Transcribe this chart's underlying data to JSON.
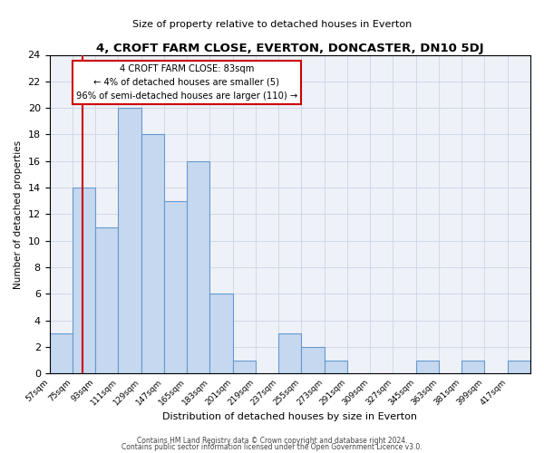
{
  "title": "4, CROFT FARM CLOSE, EVERTON, DONCASTER, DN10 5DJ",
  "subtitle": "Size of property relative to detached houses in Everton",
  "xlabel": "Distribution of detached houses by size in Everton",
  "ylabel": "Number of detached properties",
  "bin_edges": [
    57,
    75,
    93,
    111,
    129,
    147,
    165,
    183,
    201,
    219,
    237,
    255,
    273,
    291,
    309,
    327,
    345,
    363,
    381,
    399,
    417,
    435
  ],
  "bin_labels": [
    "57sqm",
    "75sqm",
    "93sqm",
    "111sqm",
    "129sqm",
    "147sqm",
    "165sqm",
    "183sqm",
    "201sqm",
    "219sqm",
    "237sqm",
    "255sqm",
    "273sqm",
    "291sqm",
    "309sqm",
    "327sqm",
    "345sqm",
    "363sqm",
    "381sqm",
    "399sqm",
    "417sqm"
  ],
  "counts": [
    3,
    14,
    11,
    20,
    18,
    13,
    16,
    6,
    1,
    0,
    3,
    2,
    1,
    0,
    0,
    0,
    1,
    0,
    1,
    0,
    1
  ],
  "bar_color": "#c5d8f0",
  "bar_edge_color": "#6699cc",
  "red_line_x": 83,
  "annotation_line1": "4 CROFT FARM CLOSE: 83sqm",
  "annotation_line2": "← 4% of detached houses are smaller (5)",
  "annotation_line3": "96% of semi-detached houses are larger (110) →",
  "annotation_box_color": "#ffffff",
  "annotation_box_edge_color": "#cc0000",
  "red_line_color": "#cc0000",
  "ylim": [
    0,
    24
  ],
  "yticks": [
    0,
    2,
    4,
    6,
    8,
    10,
    12,
    14,
    16,
    18,
    20,
    22,
    24
  ],
  "footnote1": "Contains HM Land Registry data © Crown copyright and database right 2024.",
  "footnote2": "Contains public sector information licensed under the Open Government Licence v3.0.",
  "grid_color": "#d0d8e8",
  "background_color": "#eef2f8"
}
